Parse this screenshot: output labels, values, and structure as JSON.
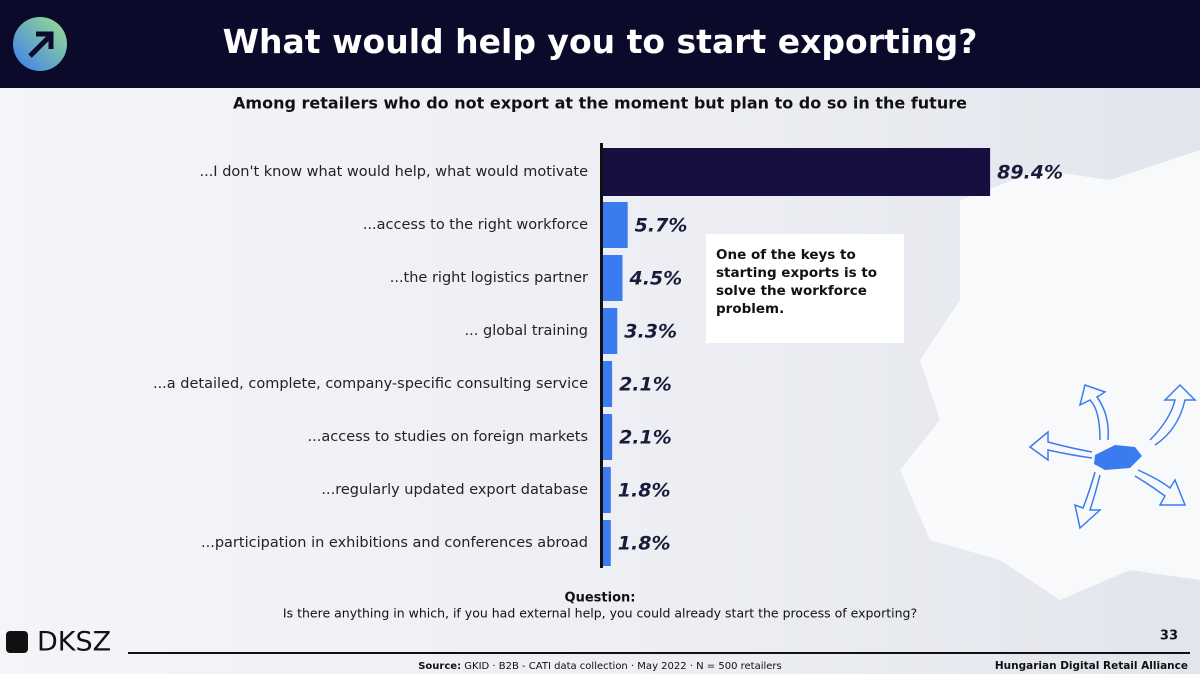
{
  "header": {
    "title": "What would help you to start exporting?",
    "logo": "DKSZ",
    "page_number": "33"
  },
  "chart_data": {
    "type": "bar",
    "orientation": "horizontal",
    "subtitle": "Among retailers who do not export at the moment but plan to do so in the future",
    "categories": [
      "...I don't know what would help, what would motivate",
      "...access to the right workforce",
      "...the right logistics partner",
      "... global training",
      "...a detailed, complete, company-specific consulting service",
      "...access to studies on foreign markets",
      "...regularly updated export database",
      "...participation in exhibitions and conferences abroad"
    ],
    "values": [
      89.4,
      5.7,
      4.5,
      3.3,
      2.1,
      2.1,
      1.8,
      1.8
    ],
    "value_labels": [
      "89.4%",
      "5.7%",
      "4.5%",
      "3.3%",
      "2.1%",
      "2.1%",
      "1.8%",
      "1.8%"
    ],
    "colors": [
      "#160f3f",
      "#3a7cf0",
      "#3a7cf0",
      "#3a7cf0",
      "#3a7cf0",
      "#3a7cf0",
      "#3a7cf0",
      "#3a7cf0"
    ],
    "annotation": "One of the keys to starting exports is to solve the workforce problem."
  },
  "question": {
    "label": "Question:",
    "text": "Is there anything in which, if you had external help, you could already start the process of exporting?"
  },
  "footer": {
    "source_label": "Source:",
    "source": "GKID · B2B - CATI data collection · May 2022 · N = 500 retailers",
    "organization": "Hungarian Digital Retail Alliance"
  }
}
